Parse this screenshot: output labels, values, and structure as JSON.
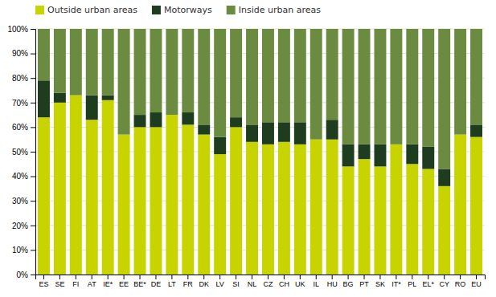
{
  "chart_data": {
    "type": "bar",
    "stacked": true,
    "categories": [
      "ES",
      "SE",
      "FI",
      "AT",
      "IE*",
      "EE",
      "BE*",
      "DE",
      "LT",
      "FR",
      "DK",
      "LV",
      "SI",
      "NL",
      "CZ",
      "CH",
      "UK",
      "IL",
      "HU",
      "BG",
      "PT",
      "SK",
      "IT*",
      "PL",
      "EL*",
      "CY",
      "RO",
      "EU"
    ],
    "series": [
      {
        "name": "Outside urban areas",
        "color": "#c8d400",
        "values": [
          64,
          70,
          73,
          63,
          71,
          57,
          60,
          60,
          65,
          61,
          57,
          49,
          60,
          54,
          53,
          54,
          53,
          55,
          55,
          44,
          47,
          44,
          53,
          45,
          43,
          36,
          57,
          56
        ]
      },
      {
        "name": "Motorways",
        "color": "#1e3d1e",
        "values": [
          15,
          4,
          0,
          10,
          2,
          0,
          5,
          6,
          0,
          5,
          4,
          7,
          4,
          7,
          9,
          8,
          9,
          0,
          8,
          9,
          6,
          9,
          0,
          8,
          9,
          7,
          0,
          5
        ]
      },
      {
        "name": "Inside urban areas",
        "color": "#6b8c40",
        "values": [
          21,
          26,
          27,
          27,
          27,
          43,
          35,
          34,
          35,
          34,
          39,
          44,
          36,
          39,
          38,
          38,
          38,
          45,
          37,
          47,
          47,
          47,
          47,
          47,
          48,
          57,
          43,
          39
        ]
      }
    ],
    "ylim": [
      0,
      100
    ],
    "yticks": [
      {
        "value": 0,
        "label": "0%"
      },
      {
        "value": 10,
        "label": "10%"
      },
      {
        "value": 20,
        "label": "20%"
      },
      {
        "value": 30,
        "label": "30%"
      },
      {
        "value": 40,
        "label": "40%"
      },
      {
        "value": 50,
        "label": "50%"
      },
      {
        "value": 60,
        "label": "60%"
      },
      {
        "value": 70,
        "label": "70%"
      },
      {
        "value": 80,
        "label": "80%"
      },
      {
        "value": 90,
        "label": "90%"
      },
      {
        "value": 100,
        "label": "100%"
      }
    ],
    "grid": true,
    "legend": "top"
  }
}
